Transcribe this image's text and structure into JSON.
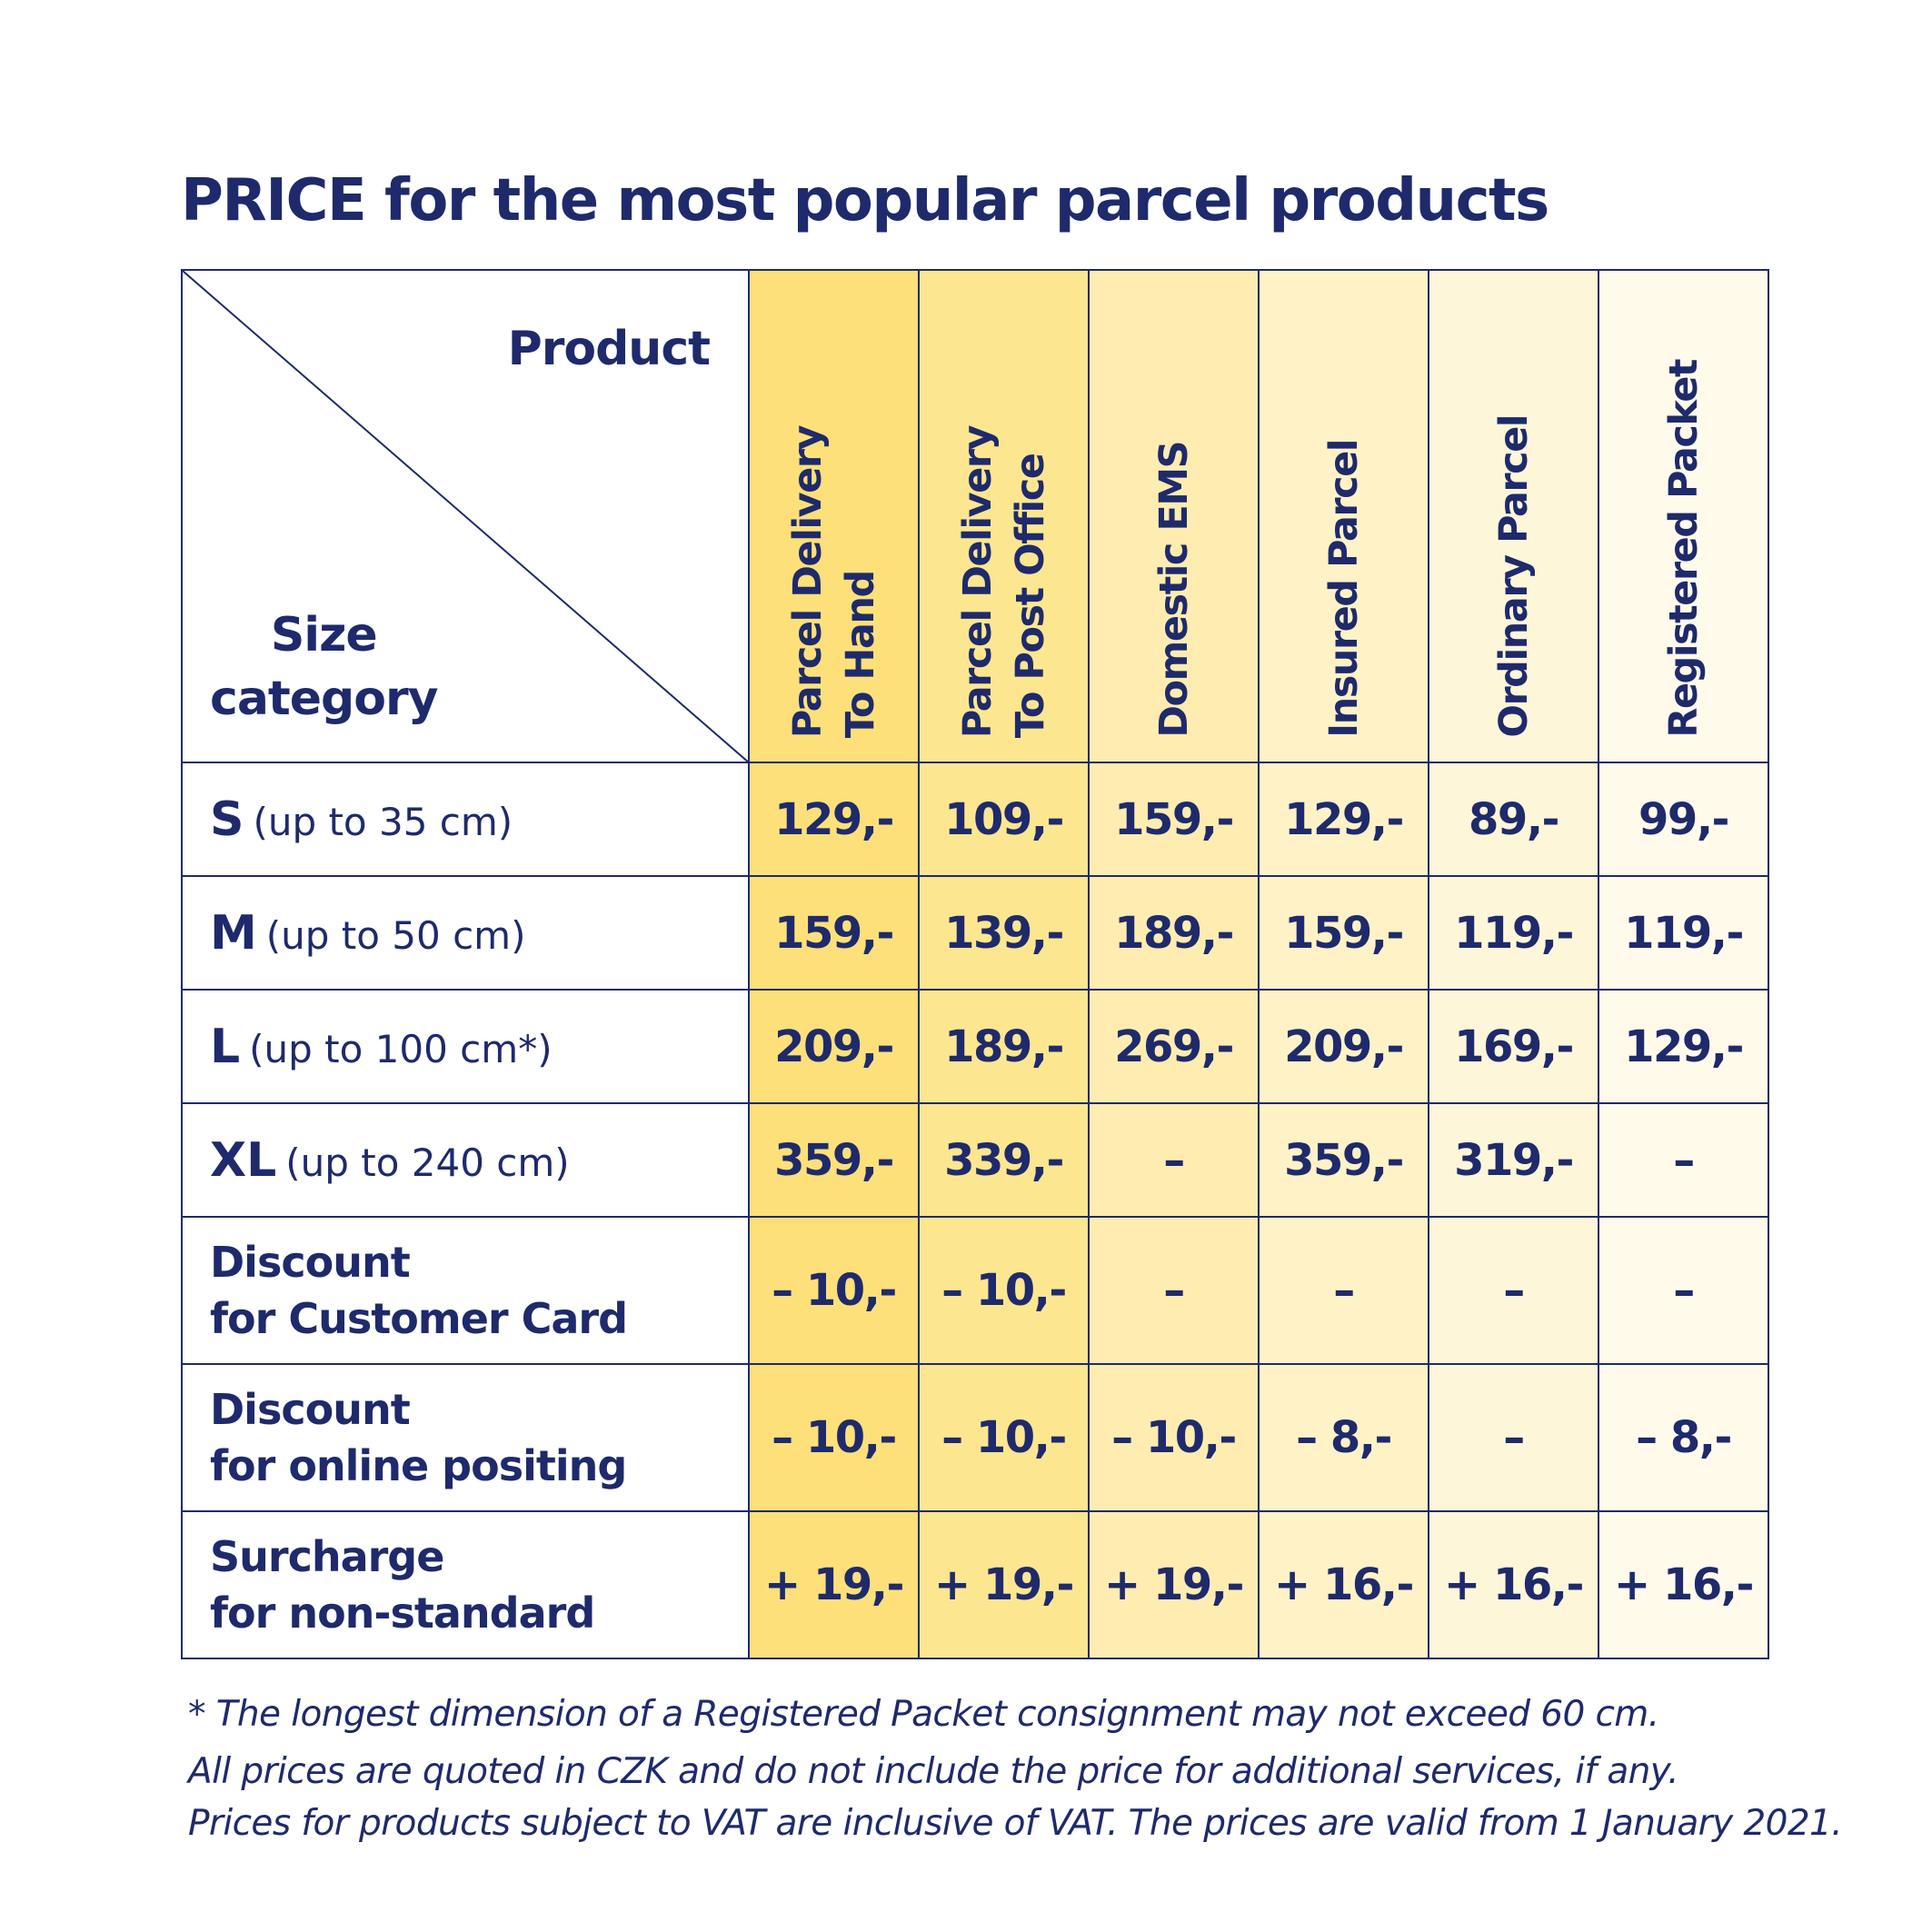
{
  "title": "PRICE for the most popular parcel products",
  "corner": {
    "product_label": "Product",
    "size_label_line1": "Size",
    "size_label_line2": "category"
  },
  "columns": [
    {
      "line1": "Parcel Delivery",
      "line2": "To Hand",
      "color": "#fde07a"
    },
    {
      "line1": "Parcel Delivery",
      "line2": "To Post Office",
      "color": "#fde690"
    },
    {
      "line1": "Domestic EMS",
      "line2": "",
      "color": "#feecb0"
    },
    {
      "line1": "Insured Parcel",
      "line2": "",
      "color": "#fef2c6"
    },
    {
      "line1": "Ordinary Parcel",
      "line2": "",
      "color": "#fef6d8"
    },
    {
      "line1": "Registered Packet",
      "line2": "",
      "color": "#fffaea"
    }
  ],
  "size_rows": [
    {
      "letter": "S",
      "desc": "(up to 35 cm)",
      "values": [
        "129,-",
        "109,-",
        "159,-",
        "129,-",
        "89,-",
        "99,-"
      ]
    },
    {
      "letter": "M",
      "desc": "(up to 50 cm)",
      "values": [
        "159,-",
        "139,-",
        "189,-",
        "159,-",
        "119,-",
        "119,-"
      ]
    },
    {
      "letter": "L",
      "desc": "(up to 100 cm*)",
      "values": [
        "209,-",
        "189,-",
        "269,-",
        "209,-",
        "169,-",
        "129,-"
      ]
    },
    {
      "letter": "XL",
      "desc": "(up to 240 cm)",
      "values": [
        "359,-",
        "339,-",
        "–",
        "359,-",
        "319,-",
        "–"
      ]
    }
  ],
  "extra_rows": [
    {
      "line1": "Discount",
      "line2": "for Customer Card",
      "values": [
        "– 10,-",
        "– 10,-",
        "–",
        "–",
        "–",
        "–"
      ]
    },
    {
      "line1": "Discount",
      "line2": "for online positing",
      "values": [
        "– 10,-",
        "– 10,-",
        "– 10,-",
        "– 8,-",
        "–",
        "– 8,-"
      ]
    },
    {
      "line1": "Surcharge",
      "line2": "for non-standard",
      "values": [
        "+ 19,-",
        "+ 19,-",
        "+ 19,-",
        "+ 16,-",
        "+ 16,-",
        "+ 16,-"
      ]
    }
  ],
  "footnotes": {
    "asterisk": "*  The longest dimension of a Registered Packet consignment may not exceed 60 cm.",
    "line2": "All prices are quoted in CZK and do not include the price for additional services, if any.",
    "line3": "Prices for products subject to VAT are inclusive of VAT. The prices are valid from 1 January 2021."
  },
  "colors": {
    "text": "#1e2a6b",
    "border": "#1e2a6b"
  }
}
